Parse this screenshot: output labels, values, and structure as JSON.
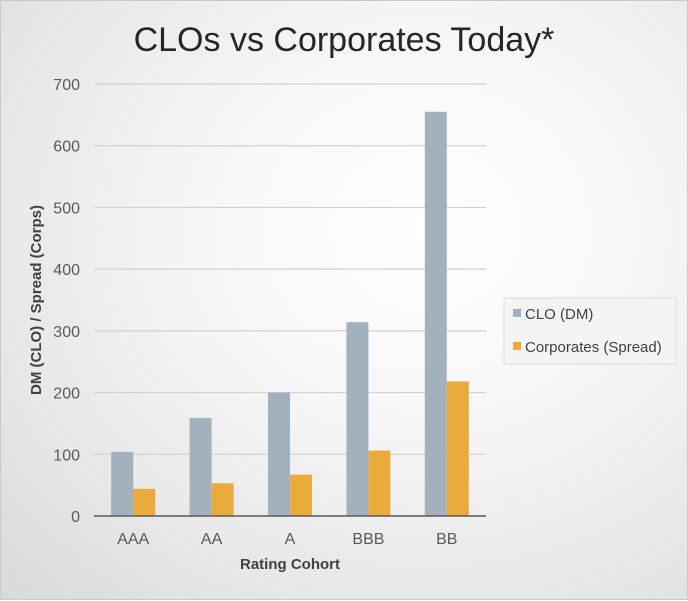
{
  "chart_data": {
    "type": "bar",
    "title": "CLOs vs Corporates Today*",
    "xlabel": "Rating Cohort",
    "ylabel": "DM (CLO) / Spread (Corps)",
    "categories": [
      "AAA",
      "AA",
      "A",
      "BBB",
      "BB"
    ],
    "series": [
      {
        "name": "CLO (DM)",
        "values": [
          104,
          159,
          200,
          314,
          655
        ]
      },
      {
        "name": "Corporates (Spread)",
        "values": [
          44,
          53,
          67,
          106,
          218
        ]
      }
    ],
    "ylim": [
      0,
      700
    ],
    "yticks": [
      0,
      100,
      200,
      300,
      400,
      500,
      600,
      700
    ],
    "ytick_labels": [
      "0",
      "100",
      "200",
      "300",
      "400",
      "500",
      "600",
      "700"
    ],
    "grid": true,
    "legend_position": "right"
  },
  "colors": {
    "clo": "#a3b0bd",
    "corporates": "#e9ab3c",
    "gridline": "#d2d2d2",
    "axis": "#595959"
  }
}
